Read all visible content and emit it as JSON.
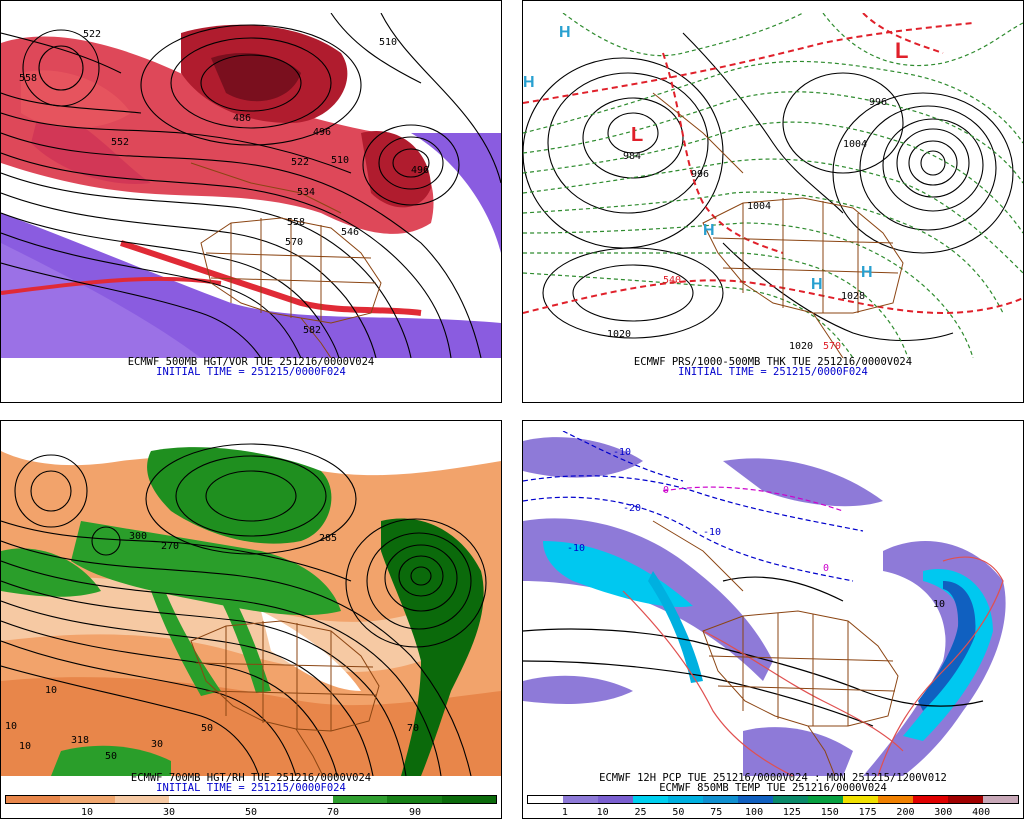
{
  "panels": {
    "p1": {
      "line1": "ECMWF 500MB HGT/VOR TUE 251216/0000V024",
      "line2": "INITIAL TIME = 251215/0000F024",
      "labels": [
        "558",
        "522",
        "510",
        "486",
        "496",
        "522",
        "510",
        "496",
        "534",
        "558",
        "570",
        "582",
        "546",
        "552"
      ]
    },
    "p2": {
      "line1": "ECMWF PRS/1000-500MB THK TUE 251216/0000V024",
      "line2": "INITIAL TIME = 251215/0000F024",
      "labels": [
        "L",
        "L",
        "H",
        "H",
        "H",
        "H",
        "H",
        "1020",
        "1020",
        "984",
        "996",
        "1004",
        "996",
        "1004",
        "540",
        "570",
        "1028"
      ]
    },
    "p3": {
      "line1": "ECMWF 700MB HGT/RH TUE 251216/0000V024",
      "line2": "INITIAL TIME = 251215/0000F024",
      "scale_ticks": [
        "10",
        "30",
        "50",
        "70",
        "90"
      ],
      "scale_colors": [
        "#e8864a",
        "#f0a66e",
        "#f6c9a3",
        "#ffffff",
        "#ffffff",
        "#ffffff",
        "#2f9e2f",
        "#178017",
        "#0b6a0b"
      ],
      "labels": [
        "270",
        "300",
        "285",
        "10",
        "10",
        "10",
        "50",
        "50",
        "30",
        "70",
        "318"
      ]
    },
    "p4": {
      "line1": "ECMWF 12H PCP TUE 251216/0000V024 : MON 251215/1200V012",
      "line2": "ECMWF 850MB TEMP TUE 251216/0000V024",
      "scale_ticks": [
        "1",
        "10",
        "25",
        "50",
        "75",
        "100",
        "125",
        "150",
        "175",
        "200",
        "300",
        "400"
      ],
      "scale_colors": [
        "#ffffff",
        "#8e7ad8",
        "#7a5fd0",
        "#00d0f0",
        "#00b0e0",
        "#1090d0",
        "#1060c0",
        "#0a8a6a",
        "#06a040",
        "#f0e000",
        "#f08000",
        "#e00000",
        "#a00000",
        "#c8a8b8"
      ],
      "labels": [
        "-10",
        "-20",
        "-10",
        "0",
        "10",
        "-10",
        "0"
      ]
    }
  }
}
